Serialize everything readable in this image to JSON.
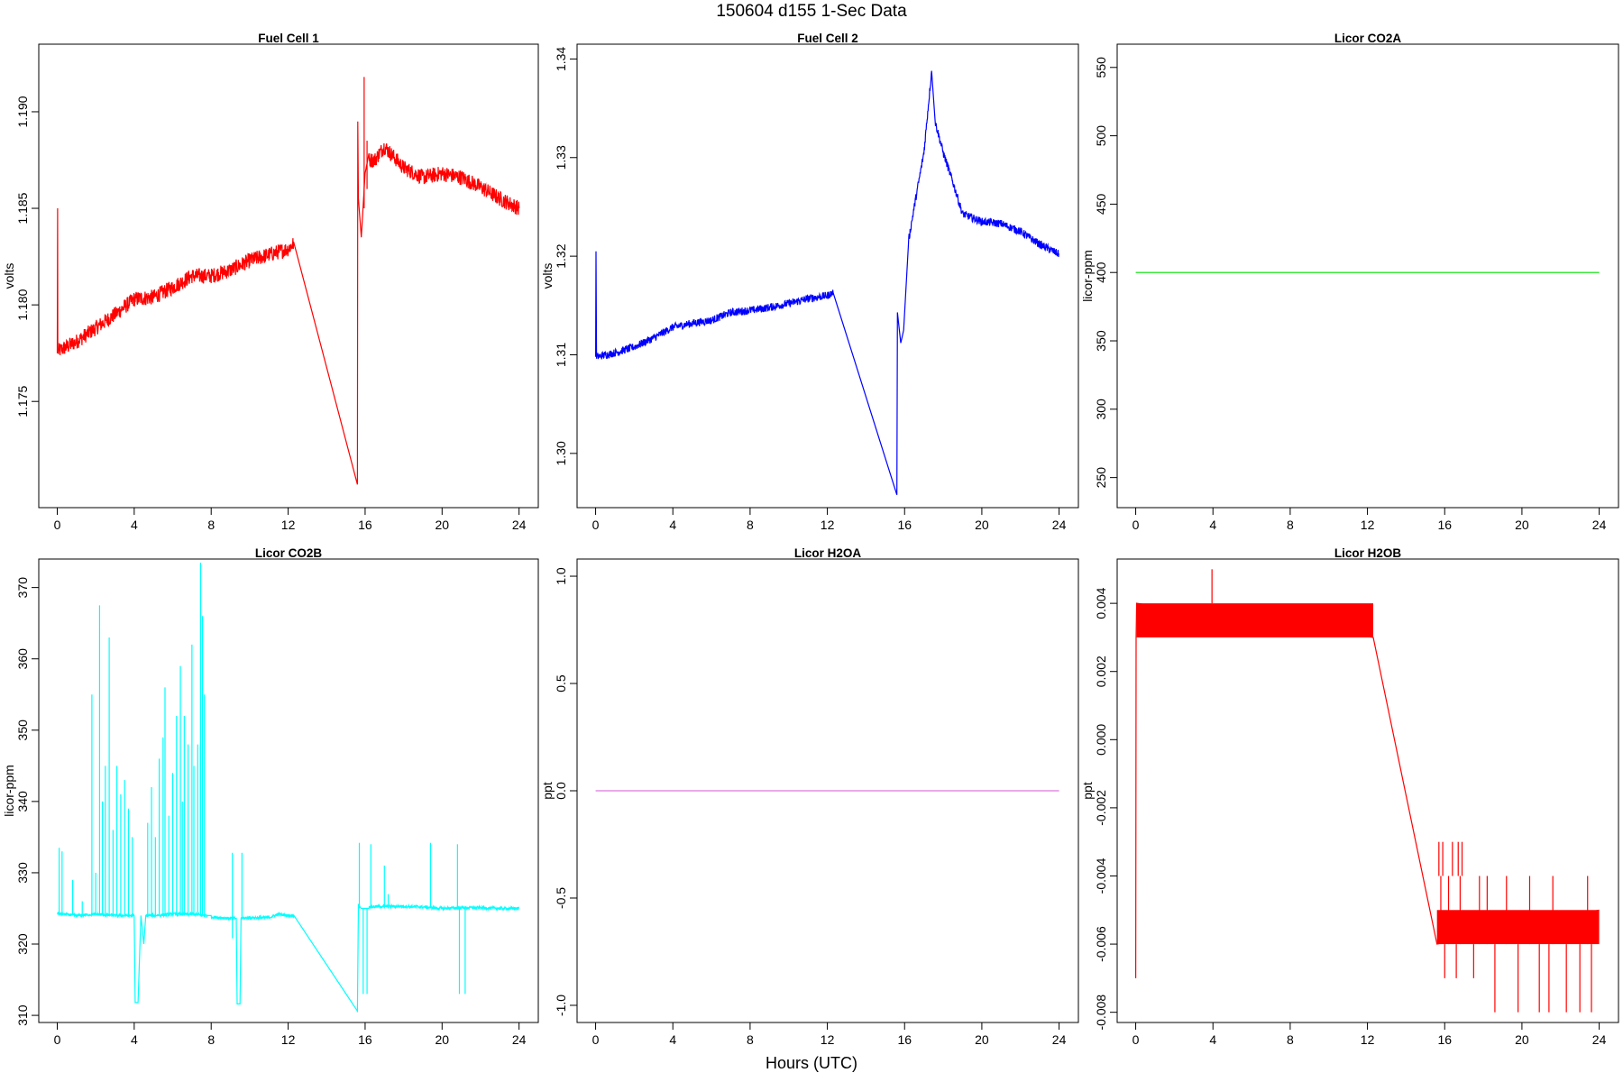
{
  "header": {
    "title": "150604   d155   1-Sec Data",
    "xlabel": "Hours (UTC)"
  },
  "chart_data": [
    {
      "type": "line",
      "title": "Fuel Cell 1",
      "ylabel": "volts",
      "color": "#ff0000",
      "xlim": [
        -0.96,
        25
      ],
      "ylim": [
        1.1695,
        1.1935
      ],
      "xticks": [
        0,
        4,
        8,
        12,
        16,
        20,
        24
      ],
      "yticks": [
        1.175,
        1.18,
        1.185,
        1.19
      ],
      "ytick_labels": [
        "1.175",
        "1.180",
        "1.185",
        "1.190"
      ],
      "noise": 0.0004,
      "x": [
        0,
        0.02,
        0.03,
        0.05,
        1,
        2,
        3,
        4,
        5,
        6,
        7,
        8,
        9,
        10,
        11,
        12,
        12.3,
        15.6,
        15.62,
        15.65,
        15.8,
        16,
        16.2,
        16.5,
        17,
        18,
        19,
        20,
        21,
        22,
        23,
        24
      ],
      "y": [
        1.1775,
        1.185,
        1.1775,
        1.1776,
        1.1781,
        1.1788,
        1.1795,
        1.1803,
        1.1804,
        1.1809,
        1.1815,
        1.1815,
        1.1818,
        1.1823,
        1.1826,
        1.1829,
        1.1832,
        1.1707,
        1.1895,
        1.1855,
        1.1835,
        1.1868,
        1.1875,
        1.1875,
        1.1882,
        1.1871,
        1.1866,
        1.1868,
        1.1866,
        1.1861,
        1.1855,
        1.185
      ],
      "spikes": [
        {
          "x": 15.95,
          "y0": 1.185,
          "y1": 1.1918
        },
        {
          "x": 16.1,
          "y0": 1.186,
          "y1": 1.1885
        }
      ]
    },
    {
      "type": "line",
      "title": "Fuel Cell 2",
      "ylabel": "volts",
      "color": "#0000ff",
      "xlim": [
        -0.96,
        25
      ],
      "ylim": [
        1.2945,
        1.3415
      ],
      "xticks": [
        0,
        4,
        8,
        12,
        16,
        20,
        24
      ],
      "yticks": [
        1.3,
        1.31,
        1.32,
        1.33,
        1.34
      ],
      "ytick_labels": [
        "1.30",
        "1.31",
        "1.32",
        "1.33",
        "1.34"
      ],
      "noise": 0.0004,
      "x": [
        0,
        0.02,
        0.05,
        1,
        2,
        3,
        4,
        5,
        6,
        7,
        8,
        9,
        10,
        11,
        12,
        12.3,
        15.6,
        15.63,
        15.8,
        15.95,
        16.2,
        16.5,
        17,
        17.4,
        17.6,
        18,
        18.5,
        19,
        20,
        21,
        22,
        23,
        24
      ],
      "y": [
        1.3098,
        1.3205,
        1.3098,
        1.3102,
        1.3108,
        1.3117,
        1.3128,
        1.3132,
        1.3135,
        1.3143,
        1.3145,
        1.3148,
        1.3152,
        1.3157,
        1.316,
        1.3163,
        1.2958,
        1.3143,
        1.3112,
        1.3125,
        1.3215,
        1.325,
        1.3305,
        1.3388,
        1.3335,
        1.3305,
        1.3275,
        1.3243,
        1.3235,
        1.3233,
        1.3225,
        1.3212,
        1.3202
      ],
      "spikes": []
    },
    {
      "type": "line",
      "title": "Licor CO2A",
      "ylabel": "licor-ppm",
      "color": "#00e000",
      "xlim": [
        -0.96,
        25
      ],
      "ylim": [
        228,
        567
      ],
      "xticks": [
        0,
        4,
        8,
        12,
        16,
        20,
        24
      ],
      "yticks": [
        250,
        300,
        350,
        400,
        450,
        500,
        550
      ],
      "ytick_labels": [
        "250",
        "300",
        "350",
        "400",
        "450",
        "500",
        "550"
      ],
      "noise": 0,
      "x": [
        0,
        24
      ],
      "y": [
        400,
        400
      ],
      "spikes": []
    },
    {
      "type": "line",
      "title": "Licor CO2B",
      "ylabel": "licor-ppm",
      "color": "#00ffff",
      "xlim": [
        -0.96,
        25
      ],
      "ylim": [
        309,
        374
      ],
      "xticks": [
        0,
        4,
        8,
        12,
        16,
        20,
        24
      ],
      "yticks": [
        310,
        320,
        330,
        340,
        350,
        360,
        370
      ],
      "ytick_labels": [
        "310",
        "320",
        "330",
        "340",
        "350",
        "360",
        "370"
      ],
      "noise": 0.2,
      "x": [
        0,
        1,
        2,
        3,
        4,
        4.05,
        4.2,
        4.35,
        4.5,
        4.6,
        5,
        6,
        7,
        7.8,
        8,
        9,
        9.3,
        9.35,
        9.5,
        9.55,
        10,
        11,
        11.5,
        12,
        12.3,
        15.6,
        15.65,
        15.8,
        16,
        16.2,
        17,
        18,
        19,
        20,
        21,
        22,
        23,
        24
      ],
      "y": [
        324.3,
        324,
        324.2,
        324,
        324,
        311.8,
        311.8,
        324,
        320,
        324,
        324,
        324.2,
        324.2,
        324,
        323.8,
        323.6,
        323.6,
        311.6,
        311.6,
        323.6,
        323.7,
        323.7,
        324.2,
        324,
        324,
        310.6,
        325.5,
        325,
        325,
        325.2,
        325.3,
        325.3,
        325.2,
        325,
        325.1,
        325.1,
        325,
        325
      ],
      "spikes": [
        {
          "x": 0.1,
          "y0": 324,
          "y1": 333.5
        },
        {
          "x": 0.25,
          "y0": 324,
          "y1": 333
        },
        {
          "x": 0.8,
          "y0": 324,
          "y1": 329
        },
        {
          "x": 1.3,
          "y0": 324,
          "y1": 326
        },
        {
          "x": 1.8,
          "y0": 324,
          "y1": 355
        },
        {
          "x": 2.0,
          "y0": 324,
          "y1": 330
        },
        {
          "x": 2.2,
          "y0": 324,
          "y1": 367.5
        },
        {
          "x": 2.35,
          "y0": 324,
          "y1": 340
        },
        {
          "x": 2.5,
          "y0": 324,
          "y1": 345
        },
        {
          "x": 2.7,
          "y0": 324,
          "y1": 363
        },
        {
          "x": 2.9,
          "y0": 324,
          "y1": 336
        },
        {
          "x": 3.1,
          "y0": 324,
          "y1": 345
        },
        {
          "x": 3.3,
          "y0": 324,
          "y1": 341
        },
        {
          "x": 3.5,
          "y0": 324,
          "y1": 343
        },
        {
          "x": 3.7,
          "y0": 324,
          "y1": 339
        },
        {
          "x": 3.9,
          "y0": 324,
          "y1": 335
        },
        {
          "x": 4.7,
          "y0": 324,
          "y1": 337
        },
        {
          "x": 4.9,
          "y0": 324,
          "y1": 342
        },
        {
          "x": 5.1,
          "y0": 324,
          "y1": 335
        },
        {
          "x": 5.3,
          "y0": 324,
          "y1": 346
        },
        {
          "x": 5.5,
          "y0": 324,
          "y1": 349
        },
        {
          "x": 5.6,
          "y0": 324,
          "y1": 356
        },
        {
          "x": 5.8,
          "y0": 324,
          "y1": 338
        },
        {
          "x": 6.0,
          "y0": 324,
          "y1": 344
        },
        {
          "x": 6.2,
          "y0": 324,
          "y1": 352
        },
        {
          "x": 6.4,
          "y0": 324,
          "y1": 359
        },
        {
          "x": 6.5,
          "y0": 324,
          "y1": 340
        },
        {
          "x": 6.6,
          "y0": 324,
          "y1": 352
        },
        {
          "x": 6.8,
          "y0": 324,
          "y1": 348
        },
        {
          "x": 7.0,
          "y0": 324,
          "y1": 362
        },
        {
          "x": 7.1,
          "y0": 324,
          "y1": 345
        },
        {
          "x": 7.3,
          "y0": 324,
          "y1": 348
        },
        {
          "x": 7.45,
          "y0": 324,
          "y1": 373.5
        },
        {
          "x": 7.55,
          "y0": 324,
          "y1": 366
        },
        {
          "x": 7.65,
          "y0": 324,
          "y1": 355
        },
        {
          "x": 9.1,
          "y0": 323.6,
          "y1": 332.8
        },
        {
          "x": 9.6,
          "y0": 323.6,
          "y1": 332.8
        },
        {
          "x": 9.1,
          "y0": 323.6,
          "y1": 320.8
        },
        {
          "x": 15.7,
          "y0": 325,
          "y1": 334.2
        },
        {
          "x": 15.9,
          "y0": 325,
          "y1": 313
        },
        {
          "x": 16.1,
          "y0": 325,
          "y1": 313
        },
        {
          "x": 16.3,
          "y0": 325,
          "y1": 334
        },
        {
          "x": 17.0,
          "y0": 325,
          "y1": 331
        },
        {
          "x": 17.2,
          "y0": 325,
          "y1": 327
        },
        {
          "x": 19.4,
          "y0": 325,
          "y1": 334.2
        },
        {
          "x": 20.8,
          "y0": 325,
          "y1": 334
        },
        {
          "x": 20.9,
          "y0": 325,
          "y1": 313
        },
        {
          "x": 21.2,
          "y0": 325,
          "y1": 313
        }
      ]
    },
    {
      "type": "line",
      "title": "Licor H2OA",
      "ylabel": "ppt",
      "color": "#dd77dd",
      "xlim": [
        -0.96,
        25
      ],
      "ylim": [
        -1.08,
        1.08
      ],
      "xticks": [
        0,
        4,
        8,
        12,
        16,
        20,
        24
      ],
      "yticks": [
        -1,
        -0.5,
        0,
        0.5,
        1
      ],
      "ytick_labels": [
        "-1.0",
        "-0.5",
        "0.0",
        "0.5",
        "1.0"
      ],
      "noise": 0,
      "x": [
        0,
        24
      ],
      "y": [
        0,
        0
      ],
      "spikes": []
    },
    {
      "type": "line",
      "title": "Licor H2OB",
      "ylabel": "ppt",
      "color": "#ff0000",
      "xlim": [
        -0.96,
        25
      ],
      "ylim": [
        -0.0083,
        0.0053
      ],
      "xticks": [
        0,
        4,
        8,
        12,
        16,
        20,
        24
      ],
      "yticks": [
        -0.008,
        -0.006,
        -0.004,
        -0.002,
        0,
        0.002,
        0.004
      ],
      "ytick_labels": [
        "-0.008",
        "-0.006",
        "-0.004",
        "-0.002",
        "0.000",
        "0.002",
        "0.004"
      ],
      "noise": 0,
      "x": [
        0,
        0.02,
        0.05,
        12.3,
        15.6,
        24
      ],
      "y": [
        -0.007,
        0.003,
        0.004,
        0.003,
        -0.006,
        -0.005
      ],
      "bands": [
        {
          "x0": 0.05,
          "x1": 12.3,
          "lo": 0.003,
          "hi": 0.004
        },
        {
          "x0": 15.6,
          "x1": 24,
          "lo": -0.006,
          "hi": -0.005
        }
      ],
      "spikes": [
        {
          "x": 3.95,
          "y0": 0.004,
          "y1": 0.005
        },
        {
          "x": 15.7,
          "y0": -0.004,
          "y1": -0.003
        },
        {
          "x": 15.9,
          "y0": -0.004,
          "y1": -0.003
        },
        {
          "x": 16.4,
          "y0": -0.004,
          "y1": -0.003
        },
        {
          "x": 16.7,
          "y0": -0.004,
          "y1": -0.003
        },
        {
          "x": 16.9,
          "y0": -0.004,
          "y1": -0.003
        },
        {
          "x": 15.8,
          "y0": -0.006,
          "y1": -0.004
        },
        {
          "x": 16.2,
          "y0": -0.006,
          "y1": -0.004
        },
        {
          "x": 16.8,
          "y0": -0.006,
          "y1": -0.004
        },
        {
          "x": 17.8,
          "y0": -0.006,
          "y1": -0.004
        },
        {
          "x": 18.2,
          "y0": -0.006,
          "y1": -0.004
        },
        {
          "x": 19.2,
          "y0": -0.006,
          "y1": -0.004
        },
        {
          "x": 20.4,
          "y0": -0.006,
          "y1": -0.004
        },
        {
          "x": 21.6,
          "y0": -0.006,
          "y1": -0.004
        },
        {
          "x": 23.4,
          "y0": -0.006,
          "y1": -0.004
        },
        {
          "x": 16.0,
          "y0": -0.006,
          "y1": -0.007
        },
        {
          "x": 16.6,
          "y0": -0.006,
          "y1": -0.007
        },
        {
          "x": 17.5,
          "y0": -0.006,
          "y1": -0.007
        },
        {
          "x": 18.6,
          "y0": -0.006,
          "y1": -0.008
        },
        {
          "x": 19.8,
          "y0": -0.006,
          "y1": -0.008
        },
        {
          "x": 20.9,
          "y0": -0.006,
          "y1": -0.008
        },
        {
          "x": 21.4,
          "y0": -0.006,
          "y1": -0.008
        },
        {
          "x": 22.3,
          "y0": -0.006,
          "y1": -0.008
        },
        {
          "x": 23.0,
          "y0": -0.006,
          "y1": -0.008
        },
        {
          "x": 23.6,
          "y0": -0.006,
          "y1": -0.008
        }
      ]
    }
  ]
}
